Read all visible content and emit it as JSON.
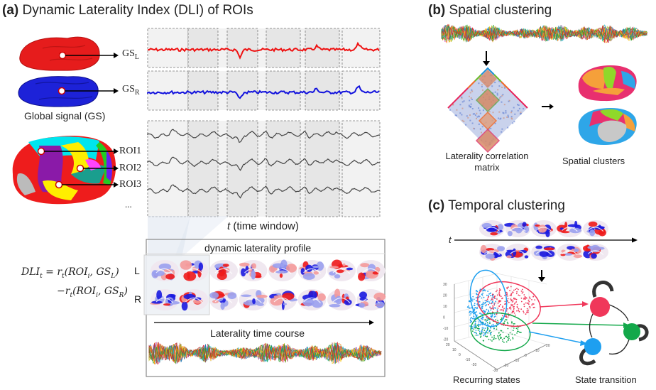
{
  "panel_a": {
    "letter": "(a)",
    "title": "Dynamic Laterality Index (DLI) of ROIs",
    "gs_left_label": "GS",
    "gs_left_sub": "L",
    "gs_right_label": "GS",
    "gs_right_sub": "R",
    "global_signal_caption": "Global signal (GS)",
    "roi_labels": [
      "ROI1",
      "ROI2",
      "ROI3"
    ],
    "roi_more": "...",
    "time_window_t": "t",
    "time_window_label": " (time window)",
    "profile_title": "dynamic laterality  profile",
    "row_left": "L",
    "row_right": "R",
    "time_course_label": "Laterality  time course",
    "formula_line1": "DLI",
    "formula_line1_sub": "t",
    "formula_line1_rest": " = r",
    "formula_line1_rest_sub": "t",
    "formula_line1_args": "(ROI",
    "formula_line1_args_sub": "i",
    "formula_line1_gs": ", GS",
    "formula_line1_gs_sub": "L",
    "formula_line2_prefix": "−r",
    "formula_line2_sub": "t",
    "formula_line2_args": "(ROI",
    "formula_line2_args_sub": "i",
    "formula_line2_gs": ", GS",
    "formula_line2_gs_sub": "R"
  },
  "panel_b": {
    "letter": "(b)",
    "title": "Spatial clustering",
    "matrix_caption_line1": "Laterality correlation",
    "matrix_caption_line2": "matrix",
    "clusters_caption": "Spatial clusters"
  },
  "panel_c": {
    "letter": "(c)",
    "title": "Temporal clustering",
    "t_label": "t",
    "recurring_caption": "Recurring states",
    "transition_caption": "State transition",
    "scatter_z_ticks": [
      "30",
      "20",
      "10",
      "0",
      "-10",
      "-20"
    ],
    "scatter_y_ticks": [
      "20",
      "10",
      "0",
      "-10",
      "-20"
    ],
    "scatter_x_ticks": [
      "-30",
      "-20",
      "-10",
      "0",
      "10",
      "20"
    ]
  },
  "colors": {
    "gs_left": "#ee1111",
    "gs_right": "#1111dd",
    "state_red": "#f0375a",
    "state_green": "#13a84a",
    "state_blue": "#1e9ff0",
    "cluster_pink": "#e8306f",
    "cluster_orange": "#f5a03a",
    "cluster_lime": "#8fd82a",
    "cluster_cyan": "#2ea6e8",
    "cluster_gray": "#c8c8c8"
  }
}
